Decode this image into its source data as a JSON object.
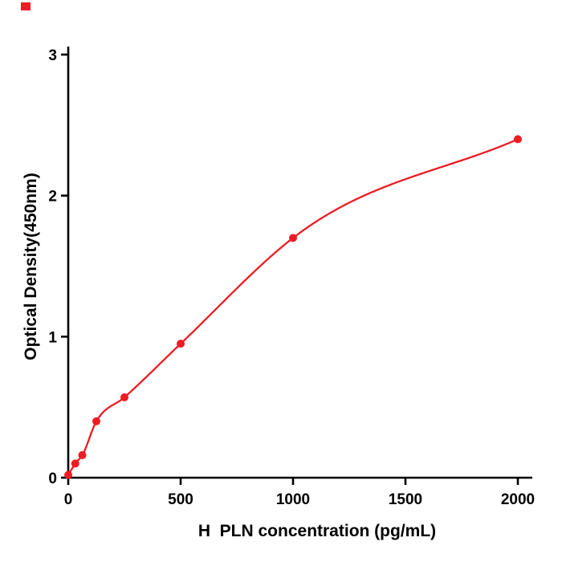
{
  "chart_data": {
    "type": "scatter",
    "fit": "smooth saturating standard curve through points",
    "x": [
      0,
      31.25,
      62.5,
      125,
      250,
      500,
      1000,
      2000
    ],
    "y": [
      0.02,
      0.1,
      0.16,
      0.4,
      0.57,
      0.95,
      1.7,
      2.4
    ],
    "title": "",
    "xlabel": "H  PLN concentration (pg/mL)",
    "ylabel": "Optical Density(450nm)",
    "xlim": [
      0,
      2060
    ],
    "ylim": [
      0,
      3
    ],
    "x_ticks": [
      0,
      500,
      1000,
      1500,
      2000
    ],
    "y_ticks": [
      0,
      1,
      2,
      3
    ],
    "grid": false,
    "legend": false,
    "point_color": "#ed1c24",
    "line_color": "#ed1c24",
    "axis_color": "#000000",
    "background_color": "#ffffff"
  }
}
